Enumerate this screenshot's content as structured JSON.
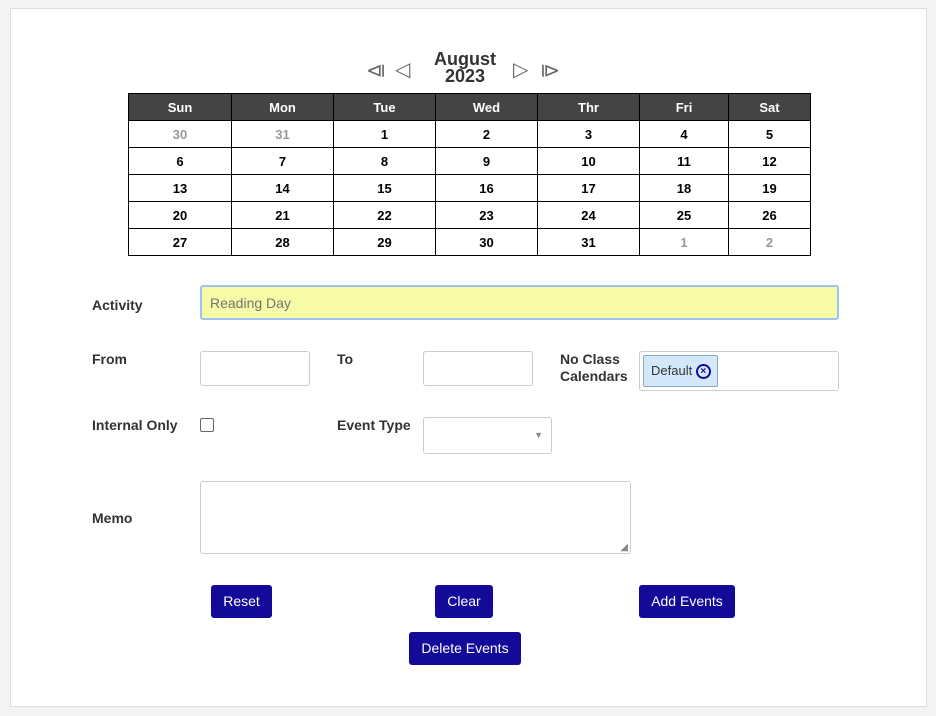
{
  "calendar": {
    "month": "August",
    "year": "2023",
    "weekdays": [
      "Sun",
      "Mon",
      "Tue",
      "Wed",
      "Thr",
      "Fri",
      "Sat"
    ],
    "weeks": [
      [
        {
          "d": "30",
          "o": true
        },
        {
          "d": "31",
          "o": true
        },
        {
          "d": "1"
        },
        {
          "d": "2"
        },
        {
          "d": "3"
        },
        {
          "d": "4"
        },
        {
          "d": "5"
        }
      ],
      [
        {
          "d": "6"
        },
        {
          "d": "7"
        },
        {
          "d": "8"
        },
        {
          "d": "9"
        },
        {
          "d": "10"
        },
        {
          "d": "11"
        },
        {
          "d": "12"
        }
      ],
      [
        {
          "d": "13"
        },
        {
          "d": "14"
        },
        {
          "d": "15"
        },
        {
          "d": "16"
        },
        {
          "d": "17"
        },
        {
          "d": "18"
        },
        {
          "d": "19"
        }
      ],
      [
        {
          "d": "20"
        },
        {
          "d": "21"
        },
        {
          "d": "22"
        },
        {
          "d": "23"
        },
        {
          "d": "24"
        },
        {
          "d": "25"
        },
        {
          "d": "26"
        }
      ],
      [
        {
          "d": "27"
        },
        {
          "d": "28"
        },
        {
          "d": "29"
        },
        {
          "d": "30"
        },
        {
          "d": "31"
        },
        {
          "d": "1",
          "o": true
        },
        {
          "d": "2",
          "o": true
        }
      ]
    ]
  },
  "form": {
    "activity_label": "Activity",
    "activity_placeholder": "Reading Day",
    "from_label": "From",
    "to_label": "To",
    "no_class_label_1": "No Class",
    "no_class_label_2": "Calendars",
    "no_class_tag": "Default",
    "internal_label": "Internal Only",
    "event_type_label": "Event Type",
    "memo_label": "Memo"
  },
  "buttons": {
    "reset": "Reset",
    "clear": "Clear",
    "add": "Add Events",
    "delete": "Delete Events"
  },
  "colors": {
    "button": "#140a99",
    "activity_bg": "#f7fba6",
    "header": "#444444"
  }
}
